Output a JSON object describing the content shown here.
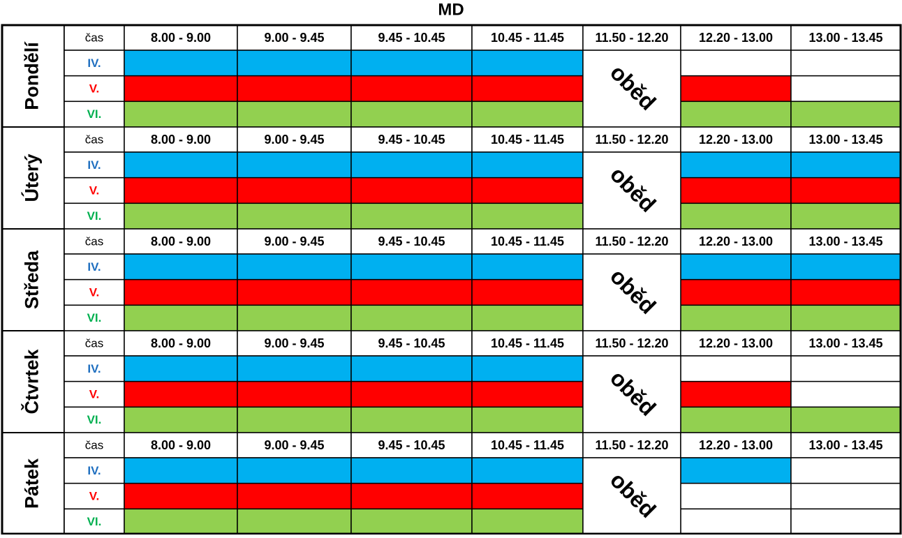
{
  "title": "MD",
  "time_label": "čas",
  "time_slots": [
    "8.00 - 9.00",
    "9.00 - 9.45",
    "9.45 - 10.45",
    "10.45 - 11.45",
    "11.50 - 12.20",
    "12.20 - 13.00",
    "13.00 - 13.45"
  ],
  "lunch": "oběd",
  "lunch_column": 4,
  "groups": [
    {
      "label": "IV.",
      "label_color": "#1f6fc0",
      "color": "#00b0f0"
    },
    {
      "label": "V.",
      "label_color": "#ff0000",
      "color": "#ff0000"
    },
    {
      "label": "VI.",
      "label_color": "#00b050",
      "color": "#92d050"
    }
  ],
  "days": [
    {
      "name": "Pondělí",
      "filled": [
        [
          true,
          true,
          true,
          true,
          false,
          false
        ],
        [
          true,
          true,
          true,
          true,
          true,
          false
        ],
        [
          true,
          true,
          true,
          true,
          true,
          true
        ]
      ]
    },
    {
      "name": "Úterý",
      "filled": [
        [
          true,
          true,
          true,
          true,
          true,
          true
        ],
        [
          true,
          true,
          true,
          true,
          true,
          true
        ],
        [
          true,
          true,
          true,
          true,
          true,
          true
        ]
      ]
    },
    {
      "name": "Středa",
      "filled": [
        [
          true,
          true,
          true,
          true,
          true,
          true
        ],
        [
          true,
          true,
          true,
          true,
          true,
          true
        ],
        [
          true,
          true,
          true,
          true,
          true,
          true
        ]
      ]
    },
    {
      "name": "Čtvrtek",
      "filled": [
        [
          true,
          true,
          true,
          true,
          false,
          false
        ],
        [
          true,
          true,
          true,
          true,
          true,
          false
        ],
        [
          true,
          true,
          true,
          true,
          true,
          true
        ]
      ]
    },
    {
      "name": "Pátek",
      "filled": [
        [
          true,
          true,
          true,
          true,
          true,
          false
        ],
        [
          true,
          true,
          true,
          true,
          false,
          false
        ],
        [
          true,
          true,
          true,
          true,
          false,
          false
        ]
      ]
    }
  ]
}
